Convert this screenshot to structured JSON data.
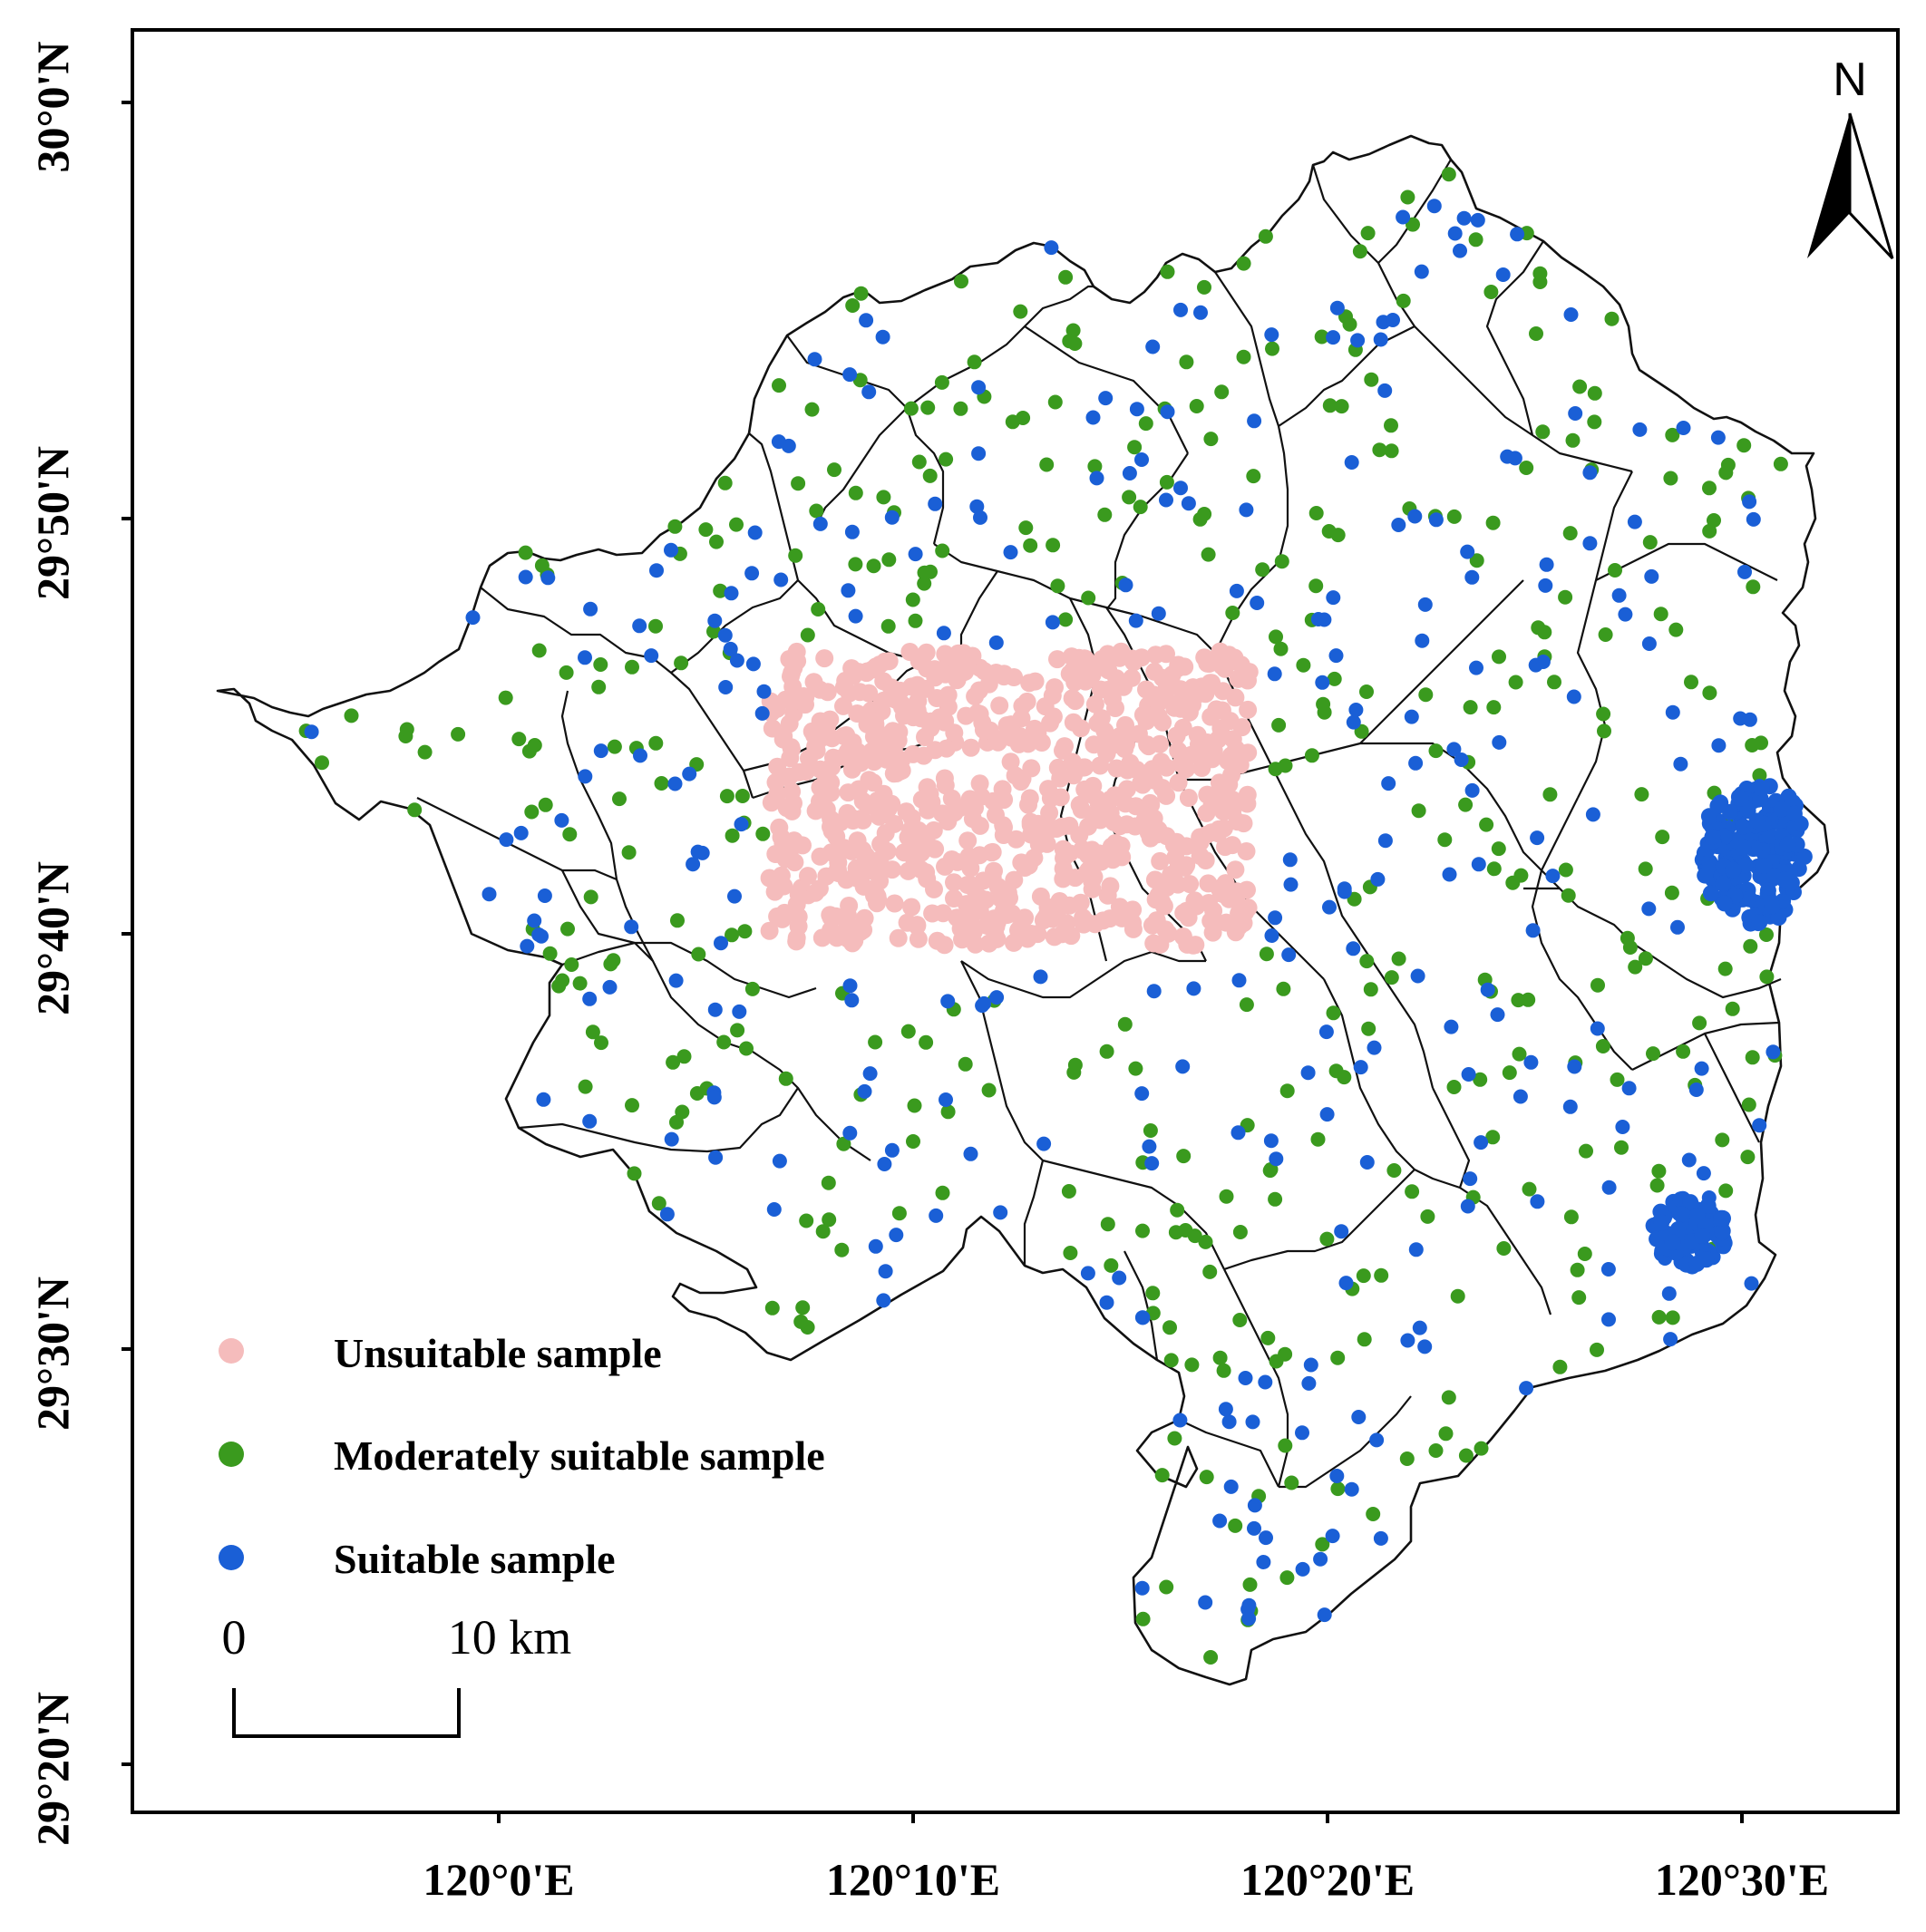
{
  "map": {
    "type": "point-sample-map",
    "latitude_labels": [
      "30°0'N",
      "29°50'N",
      "29°40'N",
      "29°30'N",
      "29°20'N"
    ],
    "longitude_labels": [
      "120°0'E",
      "120°10'E",
      "120°20'E",
      "120°30'E"
    ],
    "north_arrow_label": "N",
    "scale_bar": {
      "start_label": "0",
      "end_label": "10 km"
    },
    "legend": [
      {
        "label": "Unsuitable sample",
        "color": "#f5bcbc"
      },
      {
        "label": "Moderately suitable sample",
        "color": "#3a9a1e"
      },
      {
        "label": "Suitable sample",
        "color": "#1a5fd6"
      }
    ],
    "colors": {
      "unsuitable": "#f5bcbc",
      "moderate": "#3a9a1e",
      "suitable": "#1a5fd6",
      "boundary": "#111111"
    }
  }
}
